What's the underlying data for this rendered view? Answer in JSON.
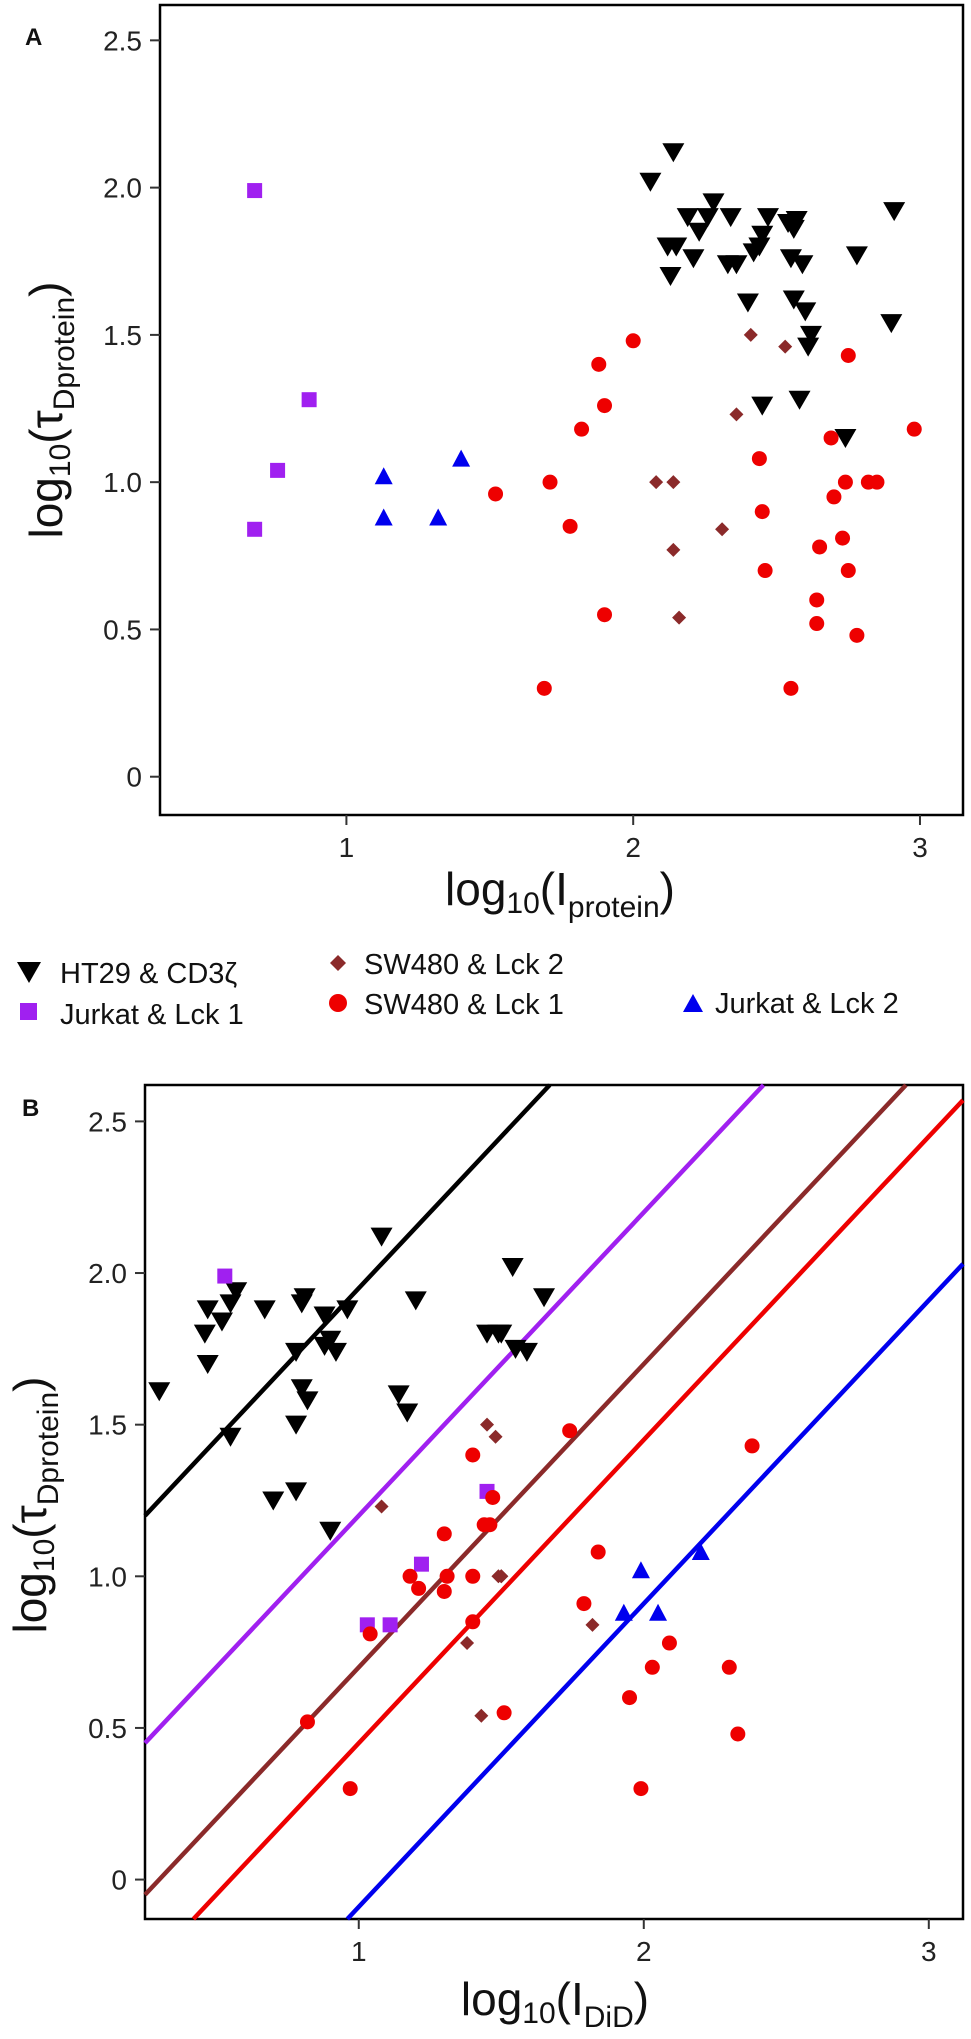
{
  "figure": {
    "legend": [
      {
        "key": "ht29",
        "label": "HT29 & CD3ζ",
        "color": "#000000",
        "marker": "triangle-down"
      },
      {
        "key": "jurkat1",
        "label": "Jurkat & Lck 1",
        "color": "#A020F0",
        "marker": "square"
      },
      {
        "key": "sw480_2",
        "label": "SW480 & Lck 2",
        "color": "#8B2A2A",
        "marker": "diamond"
      },
      {
        "key": "sw480_1",
        "label": "SW480 & Lck 1",
        "color": "#EE0000",
        "marker": "circle"
      },
      {
        "key": "jurkat2",
        "label": "Jurkat & Lck 2",
        "color": "#0000EE",
        "marker": "triangle-up"
      }
    ]
  },
  "chart_data": [
    {
      "panel": "A",
      "type": "scatter",
      "xlim": [
        0.35,
        3.15
      ],
      "ylim": [
        -0.13,
        2.62
      ],
      "xticks": [
        "1",
        "2",
        "3"
      ],
      "xtick_values": [
        1,
        2,
        3
      ],
      "yticks": [
        "0",
        "0.5",
        "1.0",
        "1.5",
        "2.0",
        "2.5"
      ],
      "ytick_values": [
        0,
        0.5,
        1.0,
        1.5,
        2.0,
        2.5
      ],
      "xlabel": {
        "base": "log",
        "sub1": "10",
        "open": "(I",
        "sub2": "protein",
        "close": ")"
      },
      "ylabel": {
        "base": "log",
        "sub1": "10",
        "open": "(τ",
        "sub2": "Dprotein",
        "close": ")"
      },
      "lines": [],
      "series": [
        {
          "name": "HT29 & CD3ζ",
          "key": "ht29",
          "points": [
            [
              2.06,
              2.02
            ],
            [
              2.14,
              2.12
            ],
            [
              2.12,
              1.8
            ],
            [
              2.15,
              1.8
            ],
            [
              2.13,
              1.7
            ],
            [
              2.19,
              1.9
            ],
            [
              2.21,
              1.76
            ],
            [
              2.23,
              1.85
            ],
            [
              2.26,
              1.9
            ],
            [
              2.28,
              1.95
            ],
            [
              2.33,
              1.74
            ],
            [
              2.34,
              1.9
            ],
            [
              2.36,
              1.74
            ],
            [
              2.4,
              1.61
            ],
            [
              2.42,
              1.78
            ],
            [
              2.44,
              1.8
            ],
            [
              2.45,
              1.84
            ],
            [
              2.47,
              1.9
            ],
            [
              2.54,
              1.88
            ],
            [
              2.55,
              1.76
            ],
            [
              2.56,
              1.86
            ],
            [
              2.57,
              1.89
            ],
            [
              2.56,
              1.62
            ],
            [
              2.59,
              1.74
            ],
            [
              2.6,
              1.58
            ],
            [
              2.61,
              1.46
            ],
            [
              2.62,
              1.5
            ],
            [
              2.78,
              1.77
            ],
            [
              2.74,
              1.15
            ],
            [
              2.91,
              1.92
            ],
            [
              2.9,
              1.54
            ],
            [
              2.58,
              1.28
            ],
            [
              2.45,
              1.26
            ]
          ]
        },
        {
          "name": "Jurkat & Lck 1",
          "key": "jurkat1",
          "points": [
            [
              0.68,
              1.99
            ],
            [
              0.87,
              1.28
            ],
            [
              0.76,
              1.04
            ],
            [
              0.68,
              0.84
            ]
          ]
        },
        {
          "name": "SW480 & Lck 2",
          "key": "sw480_2",
          "points": [
            [
              2.41,
              1.5
            ],
            [
              2.53,
              1.46
            ],
            [
              2.36,
              1.23
            ],
            [
              2.08,
              1.0
            ],
            [
              2.14,
              1.0
            ],
            [
              2.14,
              0.77
            ],
            [
              2.31,
              0.84
            ],
            [
              2.16,
              0.54
            ]
          ]
        },
        {
          "name": "SW480 & Lck 1",
          "key": "sw480_1",
          "points": [
            [
              1.52,
              0.96
            ],
            [
              1.71,
              1.0
            ],
            [
              1.78,
              0.85
            ],
            [
              1.82,
              1.18
            ],
            [
              1.88,
              1.4
            ],
            [
              1.9,
              1.26
            ],
            [
              1.9,
              0.55
            ],
            [
              1.69,
              0.3
            ],
            [
              2.0,
              1.48
            ],
            [
              2.44,
              1.08
            ],
            [
              2.45,
              0.9
            ],
            [
              2.46,
              0.7
            ],
            [
              2.55,
              0.3
            ],
            [
              2.64,
              0.6
            ],
            [
              2.64,
              0.52
            ],
            [
              2.65,
              0.78
            ],
            [
              2.69,
              1.15
            ],
            [
              2.7,
              0.95
            ],
            [
              2.73,
              0.81
            ],
            [
              2.75,
              1.43
            ],
            [
              2.74,
              1.0
            ],
            [
              2.75,
              0.7
            ],
            [
              2.78,
              0.48
            ],
            [
              2.82,
              1.0
            ],
            [
              2.85,
              1.0
            ],
            [
              2.98,
              1.18
            ]
          ]
        },
        {
          "name": "Jurkat & Lck 2",
          "key": "jurkat2",
          "points": [
            [
              1.13,
              1.02
            ],
            [
              1.13,
              0.88
            ],
            [
              1.32,
              0.88
            ],
            [
              1.4,
              1.08
            ]
          ]
        }
      ]
    },
    {
      "panel": "B",
      "type": "scatter",
      "xlim": [
        0.25,
        3.12
      ],
      "ylim": [
        -0.13,
        2.62
      ],
      "xticks": [
        "1",
        "2",
        "3"
      ],
      "xtick_values": [
        1,
        2,
        3
      ],
      "yticks": [
        "0",
        "0.5",
        "1.0",
        "1.5",
        "2.0",
        "2.5"
      ],
      "ytick_values": [
        0,
        0.5,
        1.0,
        1.5,
        2.0,
        2.5
      ],
      "xlabel": {
        "base": "log",
        "sub1": "10",
        "open": "(I",
        "sub2": "DiD",
        "close": ")"
      },
      "ylabel": {
        "base": "log",
        "sub1": "10",
        "open": "(τ",
        "sub2": "Dprotein",
        "close": ")"
      },
      "lines": [
        {
          "key": "ht29",
          "slope": 1,
          "intercept": 0.95
        },
        {
          "key": "jurkat1",
          "slope": 1,
          "intercept": 0.2
        },
        {
          "key": "sw480_2",
          "slope": 1,
          "intercept": -0.3
        },
        {
          "key": "sw480_1",
          "slope": 1,
          "intercept": -0.55
        },
        {
          "key": "jurkat2",
          "slope": 1,
          "intercept": -1.09
        }
      ],
      "series": [
        {
          "name": "HT29 & CD3ζ",
          "key": "ht29",
          "points": [
            [
              0.3,
              1.61
            ],
            [
              0.47,
              1.88
            ],
            [
              0.46,
              1.8
            ],
            [
              0.47,
              1.7
            ],
            [
              0.52,
              1.84
            ],
            [
              0.55,
              1.9
            ],
            [
              0.57,
              1.94
            ],
            [
              0.67,
              1.88
            ],
            [
              0.7,
              1.25
            ],
            [
              0.8,
              1.9
            ],
            [
              0.81,
              1.92
            ],
            [
              0.78,
              1.74
            ],
            [
              0.8,
              1.62
            ],
            [
              0.82,
              1.58
            ],
            [
              0.78,
              1.28
            ],
            [
              0.78,
              1.5
            ],
            [
              0.88,
              1.86
            ],
            [
              0.88,
              1.76
            ],
            [
              0.9,
              1.78
            ],
            [
              0.92,
              1.74
            ],
            [
              0.96,
              1.88
            ],
            [
              0.9,
              1.15
            ],
            [
              1.08,
              2.12
            ],
            [
              1.14,
              1.6
            ],
            [
              1.17,
              1.54
            ],
            [
              1.2,
              1.91
            ],
            [
              1.45,
              1.8
            ],
            [
              1.49,
              1.8
            ],
            [
              1.5,
              1.8
            ],
            [
              1.54,
              2.02
            ],
            [
              1.55,
              1.75
            ],
            [
              1.59,
              1.74
            ],
            [
              1.65,
              1.92
            ],
            [
              0.55,
              1.46
            ]
          ]
        },
        {
          "name": "Jurkat & Lck 1",
          "key": "jurkat1",
          "points": [
            [
              0.53,
              1.99
            ],
            [
              1.03,
              0.84
            ],
            [
              1.11,
              0.84
            ],
            [
              1.22,
              1.04
            ],
            [
              1.45,
              1.28
            ]
          ]
        },
        {
          "name": "SW480 & Lck 2",
          "key": "sw480_2",
          "points": [
            [
              1.08,
              1.23
            ],
            [
              1.45,
              1.5
            ],
            [
              1.48,
              1.46
            ],
            [
              1.49,
              1.0
            ],
            [
              1.38,
              0.78
            ],
            [
              1.43,
              0.54
            ],
            [
              1.5,
              1.0
            ],
            [
              1.5,
              1.0
            ],
            [
              1.82,
              0.84
            ]
          ]
        },
        {
          "name": "SW480 & Lck 1",
          "key": "sw480_1",
          "points": [
            [
              0.82,
              0.52
            ],
            [
              0.97,
              0.3
            ],
            [
              1.04,
              0.81
            ],
            [
              1.18,
              1.0
            ],
            [
              1.21,
              0.96
            ],
            [
              1.3,
              1.14
            ],
            [
              1.31,
              1.0
            ],
            [
              1.3,
              0.95
            ],
            [
              1.4,
              1.4
            ],
            [
              1.4,
              1.0
            ],
            [
              1.4,
              0.85
            ],
            [
              1.44,
              1.17
            ],
            [
              1.46,
              1.17
            ],
            [
              1.47,
              1.26
            ],
            [
              1.51,
              0.55
            ],
            [
              1.74,
              1.48
            ],
            [
              1.79,
              0.91
            ],
            [
              1.84,
              1.08
            ],
            [
              1.95,
              0.6
            ],
            [
              1.99,
              0.3
            ],
            [
              2.03,
              0.7
            ],
            [
              2.09,
              0.78
            ],
            [
              2.3,
              0.7
            ],
            [
              2.33,
              0.48
            ],
            [
              2.38,
              1.43
            ]
          ]
        },
        {
          "name": "Jurkat & Lck 2",
          "key": "jurkat2",
          "points": [
            [
              1.93,
              0.88
            ],
            [
              1.99,
              1.02
            ],
            [
              2.05,
              0.88
            ],
            [
              2.2,
              1.08
            ]
          ]
        }
      ]
    }
  ]
}
